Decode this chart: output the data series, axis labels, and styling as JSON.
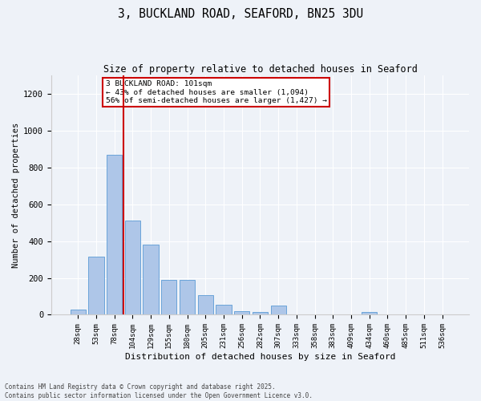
{
  "title_line1": "3, BUCKLAND ROAD, SEAFORD, BN25 3DU",
  "title_line2": "Size of property relative to detached houses in Seaford",
  "xlabel": "Distribution of detached houses by size in Seaford",
  "ylabel": "Number of detached properties",
  "categories": [
    "28sqm",
    "53sqm",
    "78sqm",
    "104sqm",
    "129sqm",
    "155sqm",
    "180sqm",
    "205sqm",
    "231sqm",
    "256sqm",
    "282sqm",
    "307sqm",
    "333sqm",
    "358sqm",
    "383sqm",
    "409sqm",
    "434sqm",
    "460sqm",
    "485sqm",
    "511sqm",
    "536sqm"
  ],
  "values": [
    30,
    315,
    870,
    510,
    380,
    190,
    190,
    105,
    55,
    20,
    15,
    50,
    0,
    0,
    0,
    0,
    15,
    0,
    0,
    0,
    0
  ],
  "bar_color": "#aec6e8",
  "bar_edge_color": "#5b9bd5",
  "vline_color": "#cc0000",
  "annotation_text_line1": "3 BUCKLAND ROAD: 101sqm",
  "annotation_text_line2": "← 43% of detached houses are smaller (1,094)",
  "annotation_text_line3": "56% of semi-detached houses are larger (1,427) →",
  "annotation_box_color": "#cc0000",
  "ylim": [
    0,
    1300
  ],
  "yticks": [
    0,
    200,
    400,
    600,
    800,
    1000,
    1200
  ],
  "footnote1": "Contains HM Land Registry data © Crown copyright and database right 2025.",
  "footnote2": "Contains public sector information licensed under the Open Government Licence v3.0.",
  "bg_color": "#eef2f8",
  "plot_bg_color": "#eef2f8",
  "grid_color": "#ffffff",
  "vline_x_index": 2.5
}
